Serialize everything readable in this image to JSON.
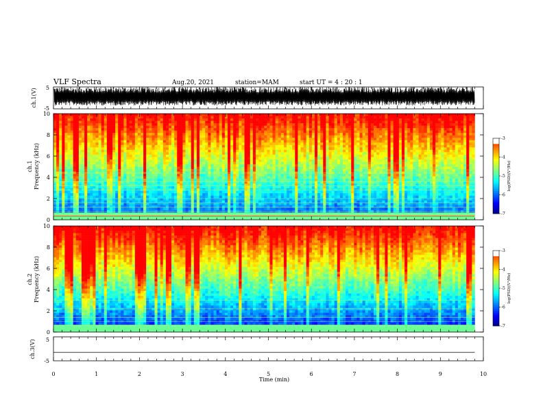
{
  "header": {
    "title": "VLF Spectra",
    "date": "Aug.20, 2021",
    "station": "station=MAM",
    "start": "start UT =  4 : 20 : 1"
  },
  "colors": {
    "colormap": [
      "#000080",
      "#0000ff",
      "#0080ff",
      "#00ffff",
      "#80ff80",
      "#ffff00",
      "#ff8000",
      "#ff0000",
      "#ffffff"
    ]
  },
  "chart_data": [
    {
      "type": "line",
      "panel": "ch1-waveform",
      "ylabel": "ch.1(V)",
      "ylim": [
        -5,
        5
      ],
      "yticks": [
        "5",
        "-5"
      ],
      "x_range_min": [
        0,
        9.8
      ],
      "description_values": {
        "approx_min_V": -3,
        "approx_max_V": 5
      }
    },
    {
      "type": "heatmap",
      "panel": "ch1-spectrogram",
      "ylabel": "ch.1\nFrequency (kHz)",
      "ylabel_line1": "ch.1",
      "ylabel_line2": "Frequency (kHz)",
      "ylim": [
        0,
        10
      ],
      "yticks": [
        "0",
        "2",
        "4",
        "6",
        "8",
        "10"
      ],
      "xlim": [
        0,
        9.8
      ],
      "colorbar": {
        "label": "log(PSD)(V²/Hz)",
        "range": [
          -7,
          -3
        ],
        "ticks": [
          "-3",
          "-4",
          "-5",
          "-6",
          "-7"
        ]
      }
    },
    {
      "type": "heatmap",
      "panel": "ch2-spectrogram",
      "ylabel_line1": "ch.2",
      "ylabel_line2": "Frequency (kHz)",
      "ylim": [
        0,
        10
      ],
      "yticks": [
        "0",
        "2",
        "4",
        "6",
        "8",
        "10"
      ],
      "xlim": [
        0,
        9.8
      ],
      "colorbar": {
        "label": "log(PSD)(V²/Hz)",
        "range": [
          -7,
          -3
        ],
        "ticks": [
          "-3",
          "-4",
          "-5",
          "-6",
          "-7"
        ]
      }
    },
    {
      "type": "line",
      "panel": "ch3-waveform",
      "ylabel": "ch.3(V)",
      "ylim": [
        -5,
        5
      ],
      "yticks": [
        "5",
        "-5"
      ],
      "x": [
        0,
        9.8
      ],
      "y": [
        -1.5,
        -1.5
      ]
    }
  ],
  "xaxis": {
    "label": "Time (min)",
    "xlim": [
      0,
      10
    ],
    "ticks": [
      "0",
      "1",
      "2",
      "3",
      "4",
      "5",
      "6",
      "7",
      "8",
      "9",
      "10"
    ]
  }
}
